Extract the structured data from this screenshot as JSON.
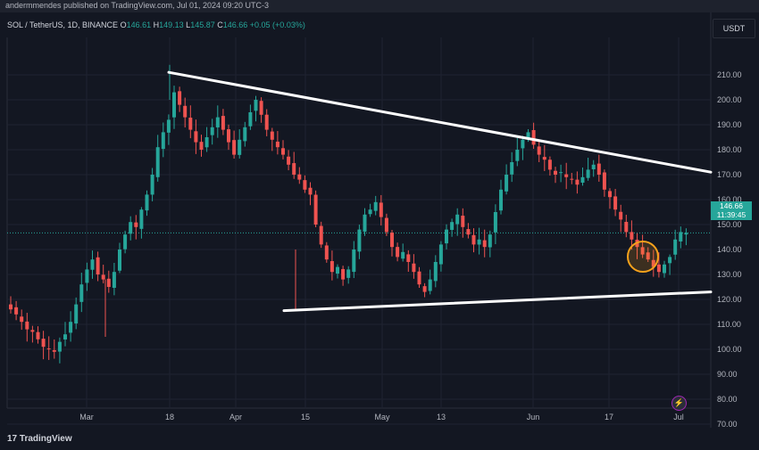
{
  "topbar": {
    "text": "andermmendes published on TradingView.com, Jul 01, 2024 09:20 UTC-3"
  },
  "header": {
    "symbol": "SOL / TetherUS, 1D, BINANCE",
    "o_label": "O",
    "o_value": "146.61",
    "h_label": "H",
    "h_value": "149.13",
    "l_label": "L",
    "l_value": "145.87",
    "c_label": "C",
    "c_value": "146.66",
    "change": "+0.05 (+0.03%)"
  },
  "currency": "USDT",
  "last_price": {
    "value": "146.66",
    "countdown": "11:39:45"
  },
  "logo": "TradingView",
  "colors": {
    "up": "#26a69a",
    "down": "#ef5350",
    "background": "#131722",
    "trendline": "#ffffff",
    "highlight": "#f7a21b"
  },
  "icons": {
    "bolt": "lightning-bolt-icon",
    "logo": "tradingview-logo-icon"
  },
  "chart_data": {
    "type": "candlestick",
    "y_axis_ticks": [
      "210.00",
      "200.00",
      "190.00",
      "180.00",
      "170.00",
      "160.00",
      "150.00",
      "140.00",
      "130.00",
      "120.00",
      "110.00",
      "100.00",
      "90.00",
      "80.00",
      "70.00"
    ],
    "x_axis_ticks": [
      "Mar",
      "18",
      "Apr",
      "15",
      "May",
      "13",
      "Jun",
      "17",
      "Jul"
    ],
    "ylim": [
      65,
      218
    ],
    "last_close": 146.66,
    "series_close": [
      116,
      114,
      111,
      108,
      107,
      104,
      101,
      100,
      99,
      103,
      106,
      111,
      118,
      126,
      132,
      136,
      130,
      128,
      125,
      131,
      140,
      146,
      151,
      149,
      156,
      162,
      170,
      181,
      187,
      192,
      203,
      198,
      193,
      188,
      183,
      180,
      185,
      189,
      193,
      188,
      183,
      178,
      184,
      189,
      195,
      200,
      194,
      188,
      184,
      181,
      178,
      174,
      170,
      168,
      164,
      162,
      150,
      142,
      136,
      131,
      133,
      128,
      132,
      140,
      148,
      154,
      156,
      159,
      153,
      147,
      141,
      137,
      139,
      135,
      131,
      126,
      123,
      128,
      135,
      142,
      148,
      151,
      154,
      149,
      146,
      142,
      144,
      141,
      146,
      155,
      164,
      170,
      175,
      180,
      184,
      187,
      182,
      178,
      176,
      172,
      170,
      171,
      169,
      168,
      166,
      169,
      172,
      174,
      170,
      164,
      161,
      156,
      152,
      147,
      144,
      141,
      138,
      136,
      133,
      131,
      134,
      137,
      144,
      147,
      146.66
    ]
  },
  "trendlines": [
    {
      "from": {
        "date_index": 26,
        "price": 211
      },
      "to": {
        "date_index": 124,
        "price": 171
      }
    },
    {
      "from": {
        "date_index": 44,
        "price": 115.5
      },
      "to": {
        "date_index": 124,
        "price": 123
      }
    }
  ]
}
